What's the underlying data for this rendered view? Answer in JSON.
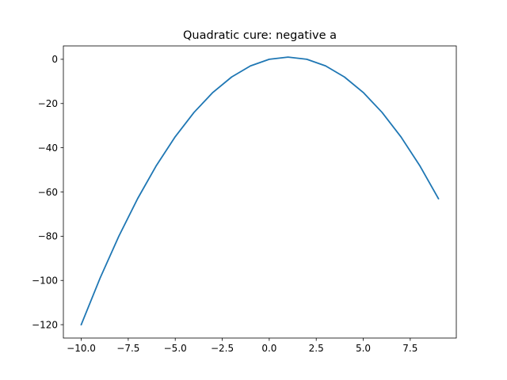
{
  "chart_data": {
    "type": "line",
    "title": "Quadratic cure: negative a",
    "xlabel": "",
    "ylabel": "",
    "xlim": [
      -10.95,
      9.95
    ],
    "ylim": [
      -126.05,
      6.05
    ],
    "grid": false,
    "x_ticks": [
      -10.0,
      -7.5,
      -5.0,
      -2.5,
      0.0,
      2.5,
      5.0,
      7.5
    ],
    "x_tick_labels": [
      "−10.0",
      "−7.5",
      "−5.0",
      "−2.5",
      "0.0",
      "2.5",
      "5.0",
      "7.5"
    ],
    "y_ticks": [
      0,
      -20,
      -40,
      -60,
      -80,
      -100,
      -120
    ],
    "y_tick_labels": [
      "0",
      "−20",
      "−40",
      "−60",
      "−80",
      "−100",
      "−120"
    ],
    "series": [
      {
        "color": "#1f77b4",
        "x": [
          -10,
          -9,
          -8,
          -7,
          -6,
          -5,
          -4,
          -3,
          -2,
          -1,
          0,
          1,
          2,
          3,
          4,
          5,
          6,
          7,
          8,
          9
        ],
        "y": [
          -120,
          -99,
          -80,
          -63,
          -48,
          -35,
          -24,
          -15,
          -8,
          -3,
          0,
          1,
          0,
          -3,
          -8,
          -15,
          -24,
          -35,
          -48,
          -63
        ]
      }
    ]
  }
}
